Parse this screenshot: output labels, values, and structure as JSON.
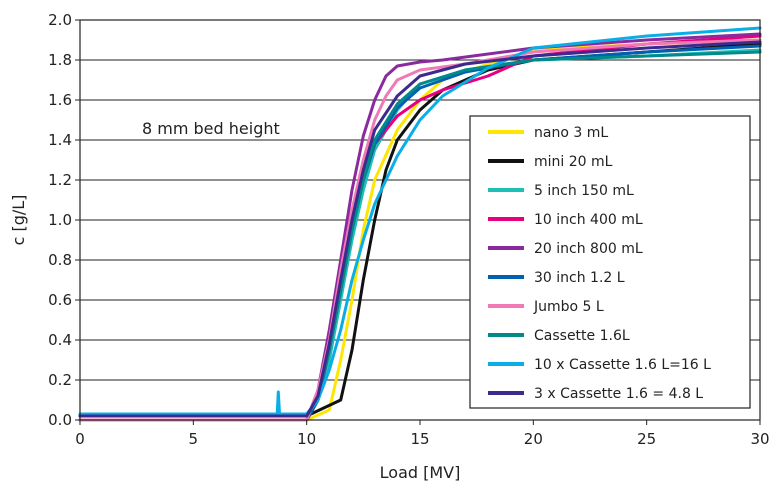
{
  "chart_data": {
    "type": "line",
    "xlabel": "Load [MV]",
    "ylabel": "c [g/L]",
    "xlim": [
      0,
      30
    ],
    "ylim": [
      0.0,
      2.0
    ],
    "xticks": [
      "0",
      "5",
      "10",
      "15",
      "20",
      "25",
      "30"
    ],
    "yticks": [
      "0.0",
      "0.2",
      "0.4",
      "0.6",
      "0.8",
      "1.0",
      "1.2",
      "1.4",
      "1.6",
      "1.8",
      "2.0"
    ],
    "grid": "horizontal",
    "legend_position": "center-right",
    "annotation": "8 mm bed height",
    "series": [
      {
        "name": "nano 3 mL",
        "color": "#ffe600",
        "points": [
          [
            0,
            0.0
          ],
          [
            10,
            0.0
          ],
          [
            11,
            0.05
          ],
          [
            11.5,
            0.3
          ],
          [
            12,
            0.6
          ],
          [
            12.5,
            0.95
          ],
          [
            13,
            1.2
          ],
          [
            14,
            1.45
          ],
          [
            15,
            1.6
          ],
          [
            16,
            1.7
          ],
          [
            18,
            1.78
          ],
          [
            20,
            1.85
          ],
          [
            25,
            1.88
          ],
          [
            30,
            1.9
          ]
        ]
      },
      {
        "name": "mini 20 mL",
        "color": "#111111",
        "points": [
          [
            0,
            0.02
          ],
          [
            10,
            0.02
          ],
          [
            11.5,
            0.1
          ],
          [
            12,
            0.35
          ],
          [
            12.5,
            0.7
          ],
          [
            13,
            1.0
          ],
          [
            13.5,
            1.25
          ],
          [
            14,
            1.4
          ],
          [
            15,
            1.55
          ],
          [
            16,
            1.65
          ],
          [
            18,
            1.75
          ],
          [
            20,
            1.8
          ],
          [
            25,
            1.84
          ],
          [
            30,
            1.88
          ]
        ]
      },
      {
        "name": "5 inch 150 mL",
        "color": "#1fbfb8",
        "points": [
          [
            0,
            0.0
          ],
          [
            10,
            0.0
          ],
          [
            10.5,
            0.1
          ],
          [
            11,
            0.3
          ],
          [
            11.5,
            0.6
          ],
          [
            12,
            0.9
          ],
          [
            12.5,
            1.15
          ],
          [
            13,
            1.35
          ],
          [
            14,
            1.55
          ],
          [
            15,
            1.68
          ],
          [
            17,
            1.75
          ],
          [
            20,
            1.8
          ],
          [
            25,
            1.82
          ],
          [
            30,
            1.85
          ]
        ]
      },
      {
        "name": "10 inch 400 mL",
        "color": "#e6007e",
        "points": [
          [
            0,
            0.0
          ],
          [
            10,
            0.0
          ],
          [
            10.5,
            0.1
          ],
          [
            11,
            0.35
          ],
          [
            11.5,
            0.65
          ],
          [
            12,
            0.95
          ],
          [
            12.5,
            1.2
          ],
          [
            13,
            1.38
          ],
          [
            14,
            1.52
          ],
          [
            15,
            1.6
          ],
          [
            16,
            1.65
          ],
          [
            18,
            1.72
          ],
          [
            20,
            1.82
          ],
          [
            25,
            1.88
          ],
          [
            30,
            1.92
          ]
        ]
      },
      {
        "name": "20 inch 800 mL",
        "color": "#8b2a9e",
        "points": [
          [
            0,
            0.0
          ],
          [
            10,
            0.0
          ],
          [
            10.5,
            0.15
          ],
          [
            11,
            0.45
          ],
          [
            11.5,
            0.8
          ],
          [
            12,
            1.15
          ],
          [
            12.5,
            1.42
          ],
          [
            13,
            1.6
          ],
          [
            13.5,
            1.72
          ],
          [
            14,
            1.77
          ],
          [
            15,
            1.79
          ],
          [
            16,
            1.8
          ],
          [
            20,
            1.86
          ],
          [
            25,
            1.9
          ],
          [
            30,
            1.93
          ]
        ]
      },
      {
        "name": "30 inch 1.2 L",
        "color": "#0061b0",
        "points": [
          [
            0,
            0.0
          ],
          [
            10,
            0.0
          ],
          [
            10.5,
            0.1
          ],
          [
            11,
            0.35
          ],
          [
            11.5,
            0.65
          ],
          [
            12,
            0.95
          ],
          [
            12.5,
            1.2
          ],
          [
            13,
            1.38
          ],
          [
            14,
            1.56
          ],
          [
            15,
            1.66
          ],
          [
            17,
            1.74
          ],
          [
            20,
            1.8
          ],
          [
            25,
            1.84
          ],
          [
            30,
            1.87
          ]
        ]
      },
      {
        "name": "Jumbo 5 L",
        "color": "#f07ab5",
        "points": [
          [
            0,
            0.0
          ],
          [
            10,
            0.0
          ],
          [
            10.5,
            0.15
          ],
          [
            11,
            0.4
          ],
          [
            11.5,
            0.75
          ],
          [
            12,
            1.05
          ],
          [
            12.5,
            1.3
          ],
          [
            13,
            1.5
          ],
          [
            13.5,
            1.62
          ],
          [
            14,
            1.7
          ],
          [
            15,
            1.75
          ],
          [
            17,
            1.78
          ],
          [
            20,
            1.84
          ],
          [
            25,
            1.88
          ],
          [
            30,
            1.9
          ]
        ]
      },
      {
        "name": "Cassette 1.6L",
        "color": "#008a8a",
        "points": [
          [
            0,
            0.02
          ],
          [
            10,
            0.02
          ],
          [
            10.5,
            0.1
          ],
          [
            11,
            0.35
          ],
          [
            11.5,
            0.65
          ],
          [
            12,
            0.95
          ],
          [
            12.5,
            1.2
          ],
          [
            13,
            1.4
          ],
          [
            14,
            1.58
          ],
          [
            15,
            1.68
          ],
          [
            17,
            1.75
          ],
          [
            20,
            1.8
          ],
          [
            25,
            1.82
          ],
          [
            30,
            1.84
          ]
        ]
      },
      {
        "name": "10 x Cassette 1.6 L=16 L",
        "color": "#0aaee6",
        "points": [
          [
            0,
            0.03
          ],
          [
            8.7,
            0.03
          ],
          [
            8.75,
            0.14
          ],
          [
            8.8,
            0.03
          ],
          [
            10,
            0.03
          ],
          [
            10.5,
            0.1
          ],
          [
            11,
            0.25
          ],
          [
            11.5,
            0.45
          ],
          [
            12,
            0.7
          ],
          [
            12.5,
            0.9
          ],
          [
            13,
            1.08
          ],
          [
            14,
            1.32
          ],
          [
            15,
            1.5
          ],
          [
            16,
            1.62
          ],
          [
            18,
            1.76
          ],
          [
            20,
            1.86
          ],
          [
            25,
            1.92
          ],
          [
            30,
            1.96
          ]
        ]
      },
      {
        "name": "3 x Cassette  1.6 = 4.8 L",
        "color": "#3d2a8c",
        "points": [
          [
            0,
            0.02
          ],
          [
            10,
            0.02
          ],
          [
            10.5,
            0.12
          ],
          [
            11,
            0.38
          ],
          [
            11.5,
            0.7
          ],
          [
            12,
            1.0
          ],
          [
            12.5,
            1.25
          ],
          [
            13,
            1.45
          ],
          [
            14,
            1.62
          ],
          [
            15,
            1.72
          ],
          [
            17,
            1.78
          ],
          [
            20,
            1.82
          ],
          [
            25,
            1.86
          ],
          [
            30,
            1.89
          ]
        ]
      }
    ]
  }
}
